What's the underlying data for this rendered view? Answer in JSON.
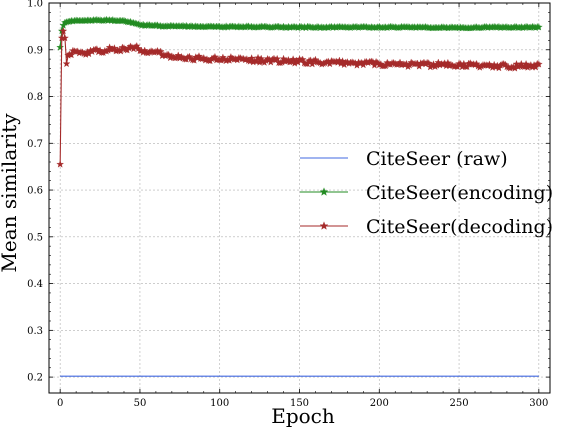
{
  "chart_data": {
    "type": "line",
    "title": "",
    "xlabel": "Epoch",
    "ylabel": "Mean similarity",
    "xlim": [
      -7,
      307
    ],
    "ylim": [
      0.166,
      1.0
    ],
    "xticks": [
      0,
      50,
      100,
      150,
      200,
      250,
      300
    ],
    "yticks": [
      0.2,
      0.3,
      0.4,
      0.5,
      0.6,
      0.7,
      0.8,
      0.9,
      1.0
    ],
    "xtick_labels": [
      "0",
      "50",
      "100",
      "150",
      "200",
      "250",
      "300"
    ],
    "ytick_labels": [
      "0.2",
      "0.3",
      "0.4",
      "0.5",
      "0.6",
      "0.7",
      "0.8",
      "0.9",
      "1.0"
    ],
    "grid": true,
    "legend_position": "center-right",
    "series": [
      {
        "name": "CiteSeer (raw)",
        "color": "#4169e1",
        "marker": "none",
        "x": [
          0,
          300
        ],
        "y": [
          0.202,
          0.202
        ]
      },
      {
        "name": "CiteSeer(encoding)",
        "color": "#228b22",
        "marker": "star",
        "x": [
          0,
          1,
          2,
          3,
          5,
          10,
          20,
          30,
          40,
          45,
          50,
          60,
          80,
          100,
          120,
          150,
          180,
          200,
          220,
          250,
          270,
          300
        ],
        "y": [
          0.905,
          0.94,
          0.952,
          0.958,
          0.96,
          0.962,
          0.963,
          0.963,
          0.962,
          0.958,
          0.953,
          0.951,
          0.95,
          0.949,
          0.949,
          0.948,
          0.948,
          0.948,
          0.948,
          0.947,
          0.948,
          0.948
        ]
      },
      {
        "name": "CiteSeer(decoding)",
        "color": "#a52a2a",
        "marker": "star",
        "x": [
          0,
          1,
          2,
          3,
          4,
          5,
          8,
          10,
          20,
          30,
          40,
          47,
          50,
          55,
          60,
          70,
          80,
          100,
          120,
          150,
          170,
          200,
          230,
          250,
          270,
          300
        ],
        "y": [
          0.655,
          0.925,
          0.94,
          0.925,
          0.87,
          0.888,
          0.895,
          0.892,
          0.895,
          0.9,
          0.902,
          0.905,
          0.9,
          0.893,
          0.895,
          0.885,
          0.882,
          0.88,
          0.878,
          0.875,
          0.873,
          0.87,
          0.868,
          0.867,
          0.865,
          0.865
        ]
      }
    ]
  }
}
